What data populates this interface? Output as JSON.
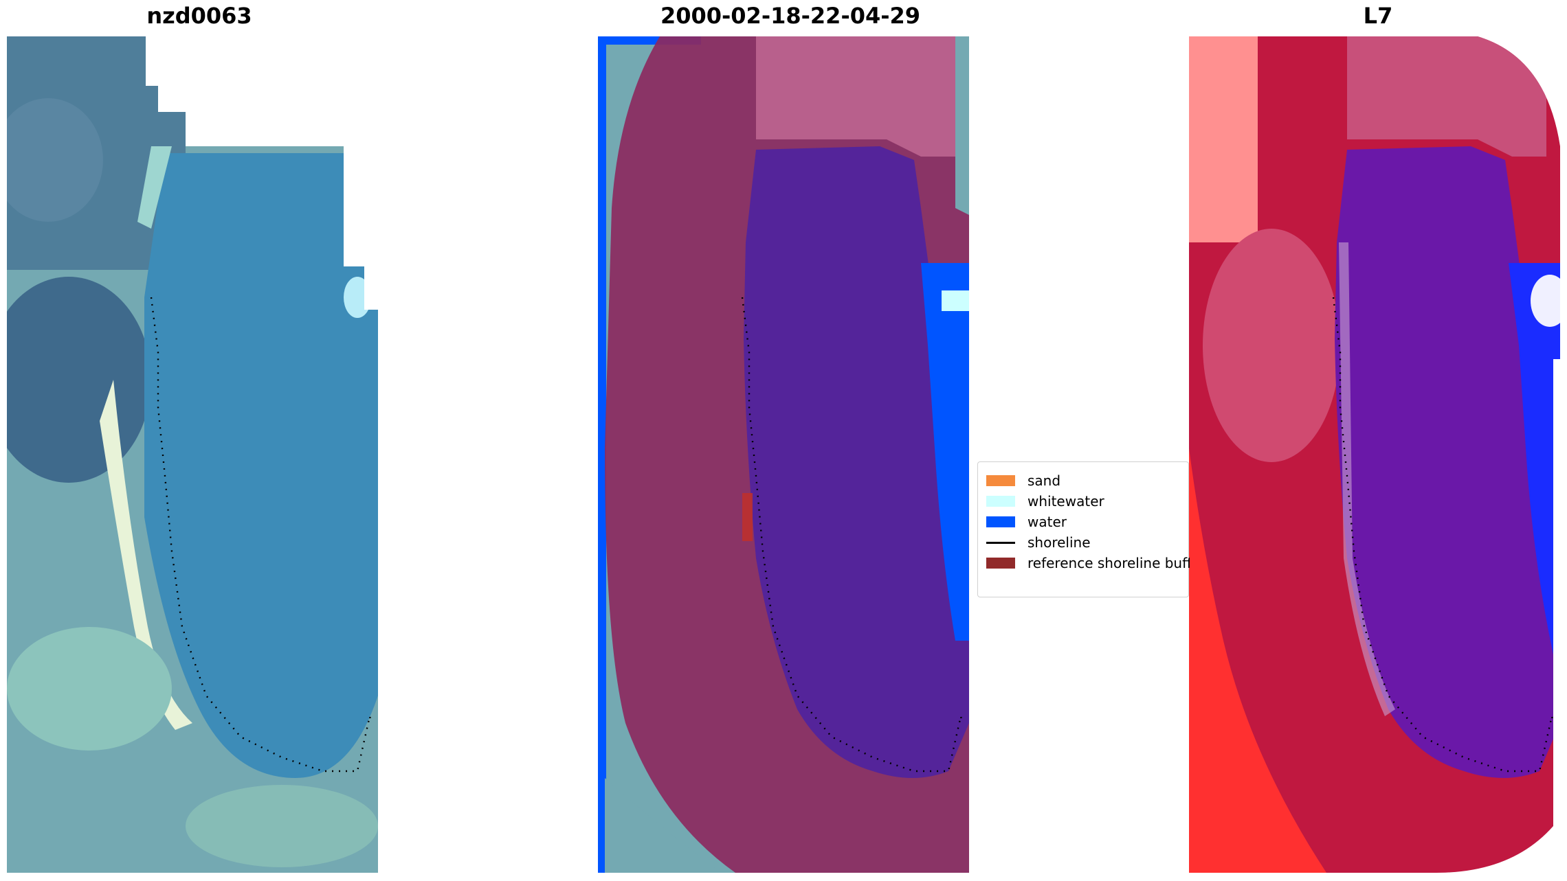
{
  "panels": [
    {
      "title": "nzd0063"
    },
    {
      "title": "2000-02-18-22-04-29"
    },
    {
      "title": "L7"
    }
  ],
  "legend": {
    "items": [
      {
        "label": "sand",
        "color": "#f58a3c",
        "kind": "patch"
      },
      {
        "label": "whitewater",
        "color": "#ccffff",
        "kind": "patch"
      },
      {
        "label": "water",
        "color": "#0055ff",
        "kind": "patch"
      },
      {
        "label": "shoreline",
        "color": "#000000",
        "kind": "line"
      },
      {
        "label": "reference shoreline buffer",
        "color": "#912a2a",
        "kind": "patch"
      }
    ]
  },
  "colors": {
    "rgb_land": "#74a9b2",
    "rgb_water": "#3d8cb8",
    "rgb_dark": "#3f6a8c",
    "rgb_beach": "#e8f3d8",
    "class_water": "#0055ff",
    "class_whitewater": "#ccffff",
    "buffer_overlay": "#8c2a60",
    "buffer_light": "#b8608c",
    "buffer_water": "#54249a",
    "ndwi_land": "#c01840",
    "ndwi_water": "#6a18a8",
    "ndwi_blue": "#1a2cff",
    "ndwi_pink": "#ff9090"
  }
}
